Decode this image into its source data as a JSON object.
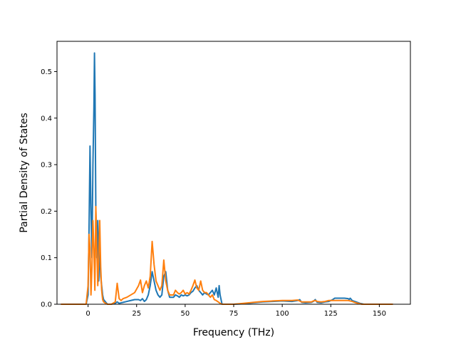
{
  "chart_data": {
    "type": "line",
    "title": "",
    "xlabel": "Frequency (THz)",
    "ylabel": "Partial Density of States",
    "xlim": [
      -16,
      166
    ],
    "ylim": [
      0,
      0.565
    ],
    "xticks": [
      0,
      25,
      50,
      75,
      100,
      125,
      150
    ],
    "yticks": [
      0.0,
      0.1,
      0.2,
      0.3,
      0.4,
      0.5
    ],
    "ytick_labels": [
      "0.0",
      "0.1",
      "0.2",
      "0.3",
      "0.4",
      "0.5"
    ],
    "grid": false,
    "legend": "none",
    "series": [
      {
        "color": "#1f77b4",
        "x": [
          -14,
          -1,
          0,
          0.5,
          1,
          1.5,
          2,
          2.5,
          3,
          3.3,
          3.6,
          4,
          4.5,
          5,
          5.5,
          6,
          6.5,
          7,
          7.5,
          8,
          9,
          10,
          12,
          14,
          15,
          16,
          17,
          18,
          20,
          22,
          24,
          26,
          27,
          28,
          29,
          30,
          31,
          32,
          33,
          34,
          35,
          36,
          37,
          38,
          39,
          40,
          41,
          42,
          44,
          45,
          46,
          47,
          48,
          49,
          50,
          51,
          52,
          53,
          54,
          55,
          56,
          57,
          58,
          59,
          60,
          61,
          62,
          63,
          64,
          65,
          66,
          67,
          67.5,
          68,
          69,
          75,
          80,
          85,
          90,
          95,
          100,
          105,
          108,
          109,
          110,
          112,
          115,
          116,
          117,
          118,
          120,
          122,
          124,
          126,
          127,
          128,
          130,
          132,
          134,
          134.5,
          135,
          136,
          138,
          140,
          141,
          142,
          145,
          150,
          157
        ],
        "y": [
          0,
          0,
          0.02,
          0.16,
          0.34,
          0.2,
          0.1,
          0.3,
          0.42,
          0.54,
          0.45,
          0.2,
          0.1,
          0.18,
          0.05,
          0.13,
          0.06,
          0.04,
          0.02,
          0.01,
          0.005,
          0,
          0,
          0.002,
          0.005,
          0.002,
          0.003,
          0.004,
          0.006,
          0.008,
          0.01,
          0.01,
          0.008,
          0.012,
          0.006,
          0.01,
          0.02,
          0.04,
          0.07,
          0.05,
          0.03,
          0.02,
          0.015,
          0.02,
          0.06,
          0.07,
          0.03,
          0.015,
          0.015,
          0.02,
          0.018,
          0.015,
          0.02,
          0.018,
          0.02,
          0.018,
          0.02,
          0.025,
          0.028,
          0.035,
          0.04,
          0.03,
          0.025,
          0.02,
          0.025,
          0.022,
          0.02,
          0.025,
          0.03,
          0.02,
          0.035,
          0.015,
          0.04,
          0.02,
          0,
          0,
          0.001,
          0.003,
          0.005,
          0.006,
          0.007,
          0.006,
          0.008,
          0.01,
          0.004,
          0.003,
          0.004,
          0.006,
          0.01,
          0.004,
          0.003,
          0.005,
          0.006,
          0.01,
          0.013,
          0.013,
          0.013,
          0.013,
          0.012,
          0.01,
          0.013,
          0.008,
          0.005,
          0.002,
          0.001,
          0,
          0,
          0,
          0
        ]
      },
      {
        "color": "#ff7f0e",
        "x": [
          -14,
          -1,
          0,
          0.5,
          1,
          1.5,
          2,
          2.5,
          3,
          3.5,
          4,
          4.5,
          5,
          5.5,
          6,
          6.5,
          7,
          7.5,
          8,
          9,
          10,
          12,
          14,
          15,
          16,
          17,
          18,
          20,
          22,
          24,
          26,
          27,
          28,
          29,
          30,
          31,
          32,
          33,
          34,
          35,
          36,
          37,
          38,
          39,
          40,
          41,
          42,
          44,
          45,
          46,
          47,
          48,
          49,
          50,
          51,
          52,
          53,
          54,
          55,
          56,
          57,
          58,
          59,
          60,
          61,
          62,
          63,
          64,
          65,
          66,
          67,
          68,
          69,
          75,
          80,
          85,
          90,
          95,
          100,
          105,
          108,
          109,
          110,
          112,
          115,
          116,
          117,
          118,
          120,
          122,
          124,
          126,
          128,
          130,
          132,
          134,
          136,
          138,
          140,
          141,
          142,
          145,
          150,
          157
        ],
        "y": [
          0,
          0,
          0.04,
          0.15,
          0.12,
          0.02,
          0.08,
          0.18,
          0.12,
          0.03,
          0.21,
          0.12,
          0.04,
          0.1,
          0.18,
          0.08,
          0.03,
          0.01,
          0.005,
          0.002,
          0,
          0,
          0.005,
          0.045,
          0.012,
          0.008,
          0.012,
          0.015,
          0.02,
          0.025,
          0.04,
          0.052,
          0.025,
          0.04,
          0.05,
          0.035,
          0.06,
          0.135,
          0.085,
          0.05,
          0.04,
          0.03,
          0.04,
          0.095,
          0.05,
          0.03,
          0.02,
          0.02,
          0.03,
          0.025,
          0.022,
          0.025,
          0.03,
          0.022,
          0.025,
          0.022,
          0.03,
          0.04,
          0.052,
          0.035,
          0.03,
          0.05,
          0.03,
          0.025,
          0.025,
          0.02,
          0.015,
          0.02,
          0.01,
          0.008,
          0.005,
          0.002,
          0,
          0,
          0.002,
          0.004,
          0.006,
          0.007,
          0.008,
          0.008,
          0.009,
          0.007,
          0.005,
          0.005,
          0.005,
          0.007,
          0.008,
          0.006,
          0.005,
          0.006,
          0.008,
          0.008,
          0.008,
          0.008,
          0.008,
          0.008,
          0.006,
          0.003,
          0.001,
          0,
          0,
          0,
          0,
          0
        ]
      }
    ]
  }
}
